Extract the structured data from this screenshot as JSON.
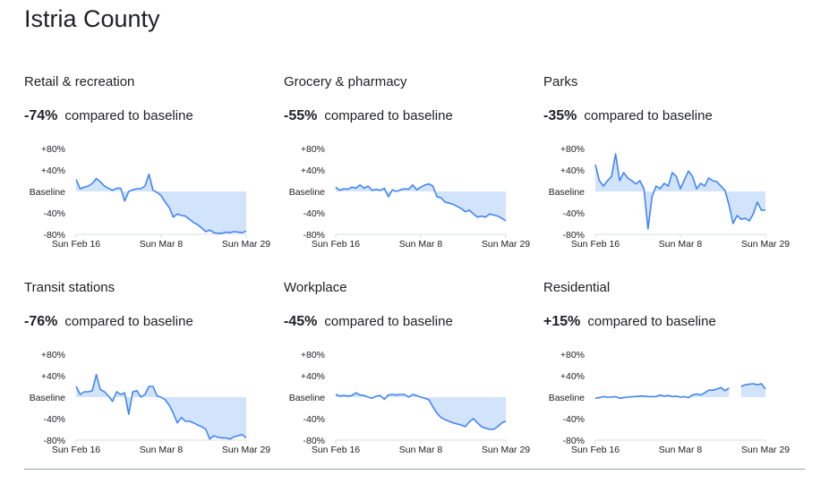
{
  "title": "Istria County",
  "baseline_label": "compared to baseline",
  "colors": {
    "line": "#4285f4",
    "fill": "#d2e3fc",
    "grid": "#dadce0",
    "text": "#202124"
  },
  "chart_data": [
    {
      "type": "area",
      "title": "Retail & recreation",
      "headline": "-74%",
      "y_ticks": [
        "+80%",
        "+40%",
        "Baseline",
        "-40%",
        "-80%"
      ],
      "ylim": [
        -80,
        80
      ],
      "x_ticks": [
        "Sun Feb 16",
        "Sun Mar 8",
        "Sun Mar 29"
      ],
      "x_tick_index": [
        0,
        21,
        42
      ],
      "values": [
        22,
        5,
        8,
        10,
        15,
        24,
        18,
        10,
        6,
        2,
        6,
        6,
        -18,
        0,
        3,
        5,
        5,
        10,
        32,
        2,
        -2,
        -8,
        -20,
        -30,
        -48,
        -42,
        -45,
        -46,
        -52,
        -58,
        -62,
        -68,
        -75,
        -72,
        -77,
        -78,
        -78,
        -76,
        -77,
        -75,
        -76,
        -77,
        -74
      ]
    },
    {
      "type": "area",
      "title": "Grocery & pharmacy",
      "headline": "-55%",
      "y_ticks": [
        "+80%",
        "+40%",
        "Baseline",
        "-40%",
        "-80%"
      ],
      "ylim": [
        -80,
        80
      ],
      "x_ticks": [
        "Sun Feb 16",
        "Sun Mar 8",
        "Sun Mar 29"
      ],
      "x_tick_index": [
        0,
        21,
        42
      ],
      "values": [
        8,
        2,
        5,
        4,
        8,
        6,
        12,
        6,
        10,
        2,
        4,
        2,
        6,
        -10,
        3,
        0,
        3,
        5,
        4,
        12,
        3,
        8,
        12,
        14,
        10,
        -10,
        -12,
        -20,
        -22,
        -24,
        -28,
        -32,
        -38,
        -35,
        -42,
        -48,
        -46,
        -48,
        -42,
        -44,
        -46,
        -50,
        -55
      ]
    },
    {
      "type": "area",
      "title": "Parks",
      "headline": "-35%",
      "y_ticks": [
        "+80%",
        "+40%",
        "Baseline",
        "-40%",
        "-80%"
      ],
      "ylim": [
        -80,
        80
      ],
      "x_ticks": [
        "Sun Feb 16",
        "Sun Mar 8",
        "Sun Mar 29"
      ],
      "x_tick_index": [
        0,
        21,
        42
      ],
      "values": [
        50,
        20,
        10,
        20,
        28,
        70,
        20,
        35,
        25,
        20,
        14,
        20,
        5,
        -70,
        -10,
        10,
        5,
        15,
        10,
        35,
        28,
        5,
        22,
        38,
        28,
        5,
        15,
        10,
        25,
        20,
        18,
        10,
        2,
        -25,
        -60,
        -45,
        -52,
        -50,
        -55,
        -42,
        -20,
        -35,
        -35
      ]
    },
    {
      "type": "area",
      "title": "Transit stations",
      "headline": "-76%",
      "y_ticks": [
        "+80%",
        "+40%",
        "Baseline",
        "-40%",
        "-80%"
      ],
      "ylim": [
        -80,
        80
      ],
      "x_ticks": [
        "Sun Feb 16",
        "Sun Mar 8",
        "Sun Mar 29"
      ],
      "x_tick_index": [
        0,
        21,
        42
      ],
      "values": [
        20,
        5,
        10,
        10,
        12,
        42,
        14,
        10,
        2,
        -8,
        10,
        5,
        8,
        -32,
        10,
        12,
        0,
        5,
        20,
        20,
        2,
        0,
        -5,
        -15,
        -30,
        -48,
        -38,
        -45,
        -45,
        -48,
        -52,
        -55,
        -60,
        -78,
        -72,
        -75,
        -76,
        -76,
        -78,
        -74,
        -72,
        -70,
        -76
      ]
    },
    {
      "type": "area",
      "title": "Workplace",
      "headline": "-45%",
      "y_ticks": [
        "+80%",
        "+40%",
        "Baseline",
        "-40%",
        "-80%"
      ],
      "ylim": [
        -80,
        80
      ],
      "x_ticks": [
        "Sun Feb 16",
        "Sun Mar 8",
        "Sun Mar 29"
      ],
      "x_tick_index": [
        0,
        21,
        42
      ],
      "values": [
        5,
        2,
        3,
        2,
        3,
        8,
        4,
        3,
        0,
        -2,
        2,
        3,
        -4,
        4,
        5,
        4,
        5,
        5,
        0,
        5,
        3,
        0,
        -2,
        -5,
        -18,
        -30,
        -38,
        -42,
        -45,
        -48,
        -50,
        -52,
        -55,
        -46,
        -40,
        -48,
        -55,
        -58,
        -60,
        -60,
        -55,
        -48,
        -45
      ]
    },
    {
      "type": "area",
      "title": "Residential",
      "headline": "+15%",
      "y_ticks": [
        "+80%",
        "+40%",
        "Baseline",
        "-40%",
        "-80%"
      ],
      "ylim": [
        -80,
        80
      ],
      "x_ticks": [
        "Sun Feb 16",
        "Sun Mar 8",
        "Sun Mar 29"
      ],
      "x_tick_index": [
        0,
        21,
        42
      ],
      "values": [
        -2,
        -1,
        1,
        0,
        0,
        1,
        -2,
        -1,
        0,
        1,
        1,
        2,
        2,
        1,
        1,
        1,
        4,
        2,
        3,
        1,
        2,
        0,
        1,
        -1,
        4,
        6,
        4,
        8,
        13,
        13,
        15,
        18,
        12,
        17,
        null,
        null,
        20,
        23,
        24,
        25,
        23,
        25,
        15
      ]
    }
  ]
}
